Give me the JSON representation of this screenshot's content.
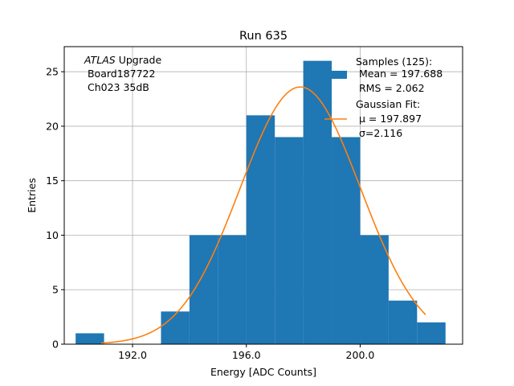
{
  "chart_data": {
    "type": "bar",
    "title": "Run 635",
    "xlabel": "Energy [ADC Counts]",
    "ylabel": "Entries",
    "xlim": [
      189.6,
      203.6
    ],
    "ylim": [
      0,
      27.3
    ],
    "grid": true,
    "x_ticks": [
      192.0,
      196.0,
      200.0
    ],
    "x_tick_labels": [
      "192.0",
      "196.0",
      "200.0"
    ],
    "y_ticks": [
      0,
      5,
      10,
      15,
      20,
      25
    ],
    "y_tick_labels": [
      "0",
      "5",
      "10",
      "15",
      "20",
      "25"
    ],
    "bins": [
      {
        "x0": 190,
        "x1": 191,
        "count": 1
      },
      {
        "x0": 191,
        "x1": 192,
        "count": 0
      },
      {
        "x0": 192,
        "x1": 193,
        "count": 0
      },
      {
        "x0": 193,
        "x1": 194,
        "count": 3
      },
      {
        "x0": 194,
        "x1": 195,
        "count": 10
      },
      {
        "x0": 195,
        "x1": 196,
        "count": 10
      },
      {
        "x0": 196,
        "x1": 197,
        "count": 21
      },
      {
        "x0": 197,
        "x1": 198,
        "count": 19
      },
      {
        "x0": 198,
        "x1": 199,
        "count": 26
      },
      {
        "x0": 199,
        "x1": 200,
        "count": 19
      },
      {
        "x0": 200,
        "x1": 201,
        "count": 10
      },
      {
        "x0": 201,
        "x1": 202,
        "count": 4
      },
      {
        "x0": 202,
        "x1": 203,
        "count": 2
      }
    ],
    "fit": {
      "mu": 197.897,
      "sigma": 2.116,
      "amplitude": 23.6,
      "x_range": [
        190.9,
        202.3
      ]
    },
    "annotation": {
      "line1_italic": "ATLAS",
      "line1_rest": " Upgrade",
      "line2": " Board187722",
      "line3": " Ch023 35dB"
    },
    "legend": {
      "placement": "top-right",
      "samples_title": "Samples (125):",
      "samples_mean": " Mean = 197.688",
      "samples_rms": " RMS = 2.062",
      "fit_title": "Gaussian Fit:",
      "fit_mu": " μ = 197.897",
      "fit_sigma": " σ=2.116"
    },
    "colors": {
      "bars": "#1f77b4",
      "fit": "#ff7f0e",
      "grid": "#b0b0b0"
    }
  }
}
